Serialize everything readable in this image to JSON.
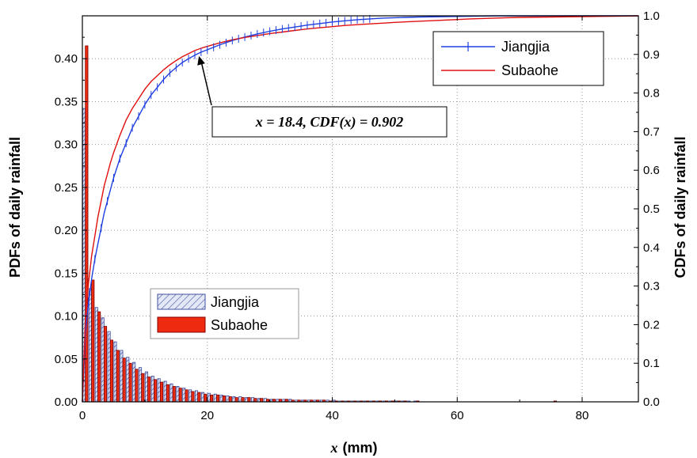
{
  "chart_data": {
    "type": "bar+line",
    "title": "",
    "xlabel_symbol": "x",
    "xlabel_unit": "(mm)",
    "ylabel_left": "PDFs of daily rainfall",
    "ylabel_right": "CDFs of daily rainfall",
    "xlim": [
      0,
      89
    ],
    "ylim_left": [
      0,
      0.45
    ],
    "ylim_right": [
      0,
      1.0
    ],
    "x_ticks": [
      "0",
      "20",
      "40",
      "60",
      "80"
    ],
    "y_left_ticks": [
      "0.00",
      "0.05",
      "0.10",
      "0.15",
      "0.20",
      "0.25",
      "0.30",
      "0.35",
      "0.40"
    ],
    "y_right_ticks": [
      "0.0",
      "0.1",
      "0.2",
      "0.3",
      "0.4",
      "0.5",
      "0.6",
      "0.7",
      "0.8",
      "0.9",
      "1.0"
    ],
    "grid": true,
    "colors": {
      "jiangjia_line": "#1f3fe0",
      "subaohe_line": "#e01010",
      "jiangjia_bar_fill": "#d7def2",
      "jiangjia_bar_hatch": "#4050a0",
      "subaohe_bar_fill": "#ee2a10",
      "grid": "#999999"
    },
    "pdf": {
      "legend_position": "center-left",
      "bin_centers": [
        0,
        1,
        2,
        3,
        4,
        5,
        6,
        7,
        8,
        9,
        10,
        11,
        12,
        13,
        14,
        15,
        16,
        17,
        18,
        19,
        20,
        21,
        22,
        23,
        24,
        25,
        26,
        27,
        28,
        29,
        30,
        31,
        32,
        33,
        34,
        35,
        36,
        37,
        38,
        39,
        40,
        41,
        42,
        43,
        44,
        45,
        46,
        47,
        48,
        49,
        50,
        51,
        52,
        53,
        54,
        55,
        56,
        57,
        58,
        59,
        60,
        61,
        62,
        63,
        64,
        65,
        66,
        67,
        68,
        69,
        70,
        71,
        72,
        73,
        74,
        75,
        76,
        77,
        78,
        79,
        80,
        81,
        82,
        83,
        84,
        85,
        86,
        87,
        88
      ],
      "series": [
        {
          "name": "Jiangjia",
          "values": [
            0.342,
            0.132,
            0.11,
            0.098,
            0.082,
            0.07,
            0.06,
            0.052,
            0.046,
            0.04,
            0.035,
            0.03,
            0.027,
            0.024,
            0.021,
            0.018,
            0.016,
            0.014,
            0.013,
            0.011,
            0.01,
            0.009,
            0.008,
            0.007,
            0.006,
            0.006,
            0.005,
            0.005,
            0.004,
            0.004,
            0.003,
            0.003,
            0.003,
            0.003,
            0.002,
            0.002,
            0.002,
            0.002,
            0.002,
            0.002,
            0.002,
            0.001,
            0.001,
            0.001,
            0.001,
            0.001,
            0.001,
            0.001,
            0.001,
            0.001,
            0.001,
            0.001,
            0.001,
            0.001,
            0.0,
            0.0,
            0.0,
            0.0,
            0.0,
            0.0,
            0.0,
            0.0,
            0.0,
            0.0,
            0.0,
            0.0,
            0.0,
            0.0,
            0.0,
            0.0,
            0.0,
            0.0,
            0.0,
            0.0,
            0.0,
            0.0,
            0.0,
            0.0,
            0.0,
            0.0,
            0.0,
            0.0,
            0.0,
            0.0,
            0.0,
            0.0,
            0.0,
            0.0,
            0.0
          ]
        },
        {
          "name": "Subaohe",
          "values": [
            0.415,
            0.142,
            0.105,
            0.088,
            0.072,
            0.06,
            0.051,
            0.045,
            0.038,
            0.033,
            0.029,
            0.026,
            0.023,
            0.02,
            0.018,
            0.016,
            0.014,
            0.012,
            0.011,
            0.009,
            0.008,
            0.008,
            0.007,
            0.006,
            0.005,
            0.005,
            0.005,
            0.004,
            0.004,
            0.003,
            0.003,
            0.003,
            0.003,
            0.002,
            0.002,
            0.002,
            0.002,
            0.002,
            0.002,
            0.001,
            0.001,
            0.001,
            0.001,
            0.001,
            0.001,
            0.001,
            0.001,
            0.001,
            0.001,
            0.001,
            0.001,
            0.001,
            0.0,
            0.001,
            0.0,
            0.0,
            0.0,
            0.0,
            0.0,
            0.0,
            0.0,
            0.0,
            0.0,
            0.0,
            0.0,
            0.0,
            0.0,
            0.0,
            0.0,
            0.0,
            0.0,
            0.0,
            0.0,
            0.0,
            0.0,
            0.001,
            0.0,
            0.0,
            0.0,
            0.0,
            0.0,
            0.0,
            0.0,
            0.0,
            0.0,
            0.0,
            0.0,
            0.0,
            0.0
          ]
        }
      ]
    },
    "cdf": {
      "legend_position": "top-right",
      "series": [
        {
          "name": "Jiangjia",
          "x": [
            0,
            0.5,
            1,
            1.5,
            2,
            2.5,
            3,
            3.5,
            4,
            4.5,
            5,
            6,
            7,
            8,
            9,
            10,
            11,
            12,
            13,
            14,
            15,
            16,
            17,
            18,
            19,
            20,
            22,
            24,
            26,
            28,
            30,
            32,
            34,
            36,
            38,
            40,
            42,
            44,
            46,
            48,
            50,
            54,
            58,
            62,
            66,
            70,
            75,
            80,
            85,
            89
          ],
          "y": [
            0.0,
            0.18,
            0.26,
            0.32,
            0.37,
            0.41,
            0.45,
            0.49,
            0.52,
            0.55,
            0.58,
            0.63,
            0.67,
            0.71,
            0.74,
            0.77,
            0.795,
            0.815,
            0.835,
            0.852,
            0.866,
            0.879,
            0.889,
            0.898,
            0.906,
            0.912,
            0.925,
            0.936,
            0.945,
            0.953,
            0.96,
            0.966,
            0.971,
            0.976,
            0.98,
            0.984,
            0.987,
            0.99,
            0.992,
            0.994,
            0.995,
            0.997,
            0.998,
            0.999,
            1.0,
            1.0,
            1.0,
            1.0,
            1.0,
            1.0
          ]
        },
        {
          "name": "Subaohe",
          "x": [
            0,
            0.5,
            1,
            1.5,
            2,
            2.5,
            3,
            3.5,
            4,
            4.5,
            5,
            6,
            7,
            8,
            9,
            10,
            11,
            12,
            13,
            14,
            15,
            16,
            17,
            18,
            19,
            20,
            22,
            24,
            26,
            28,
            30,
            32,
            34,
            36,
            38,
            40,
            42,
            44,
            46,
            48,
            50,
            54,
            58,
            62,
            66,
            70,
            75,
            80,
            85,
            89
          ],
          "y": [
            0.0,
            0.22,
            0.31,
            0.38,
            0.43,
            0.48,
            0.52,
            0.56,
            0.59,
            0.62,
            0.645,
            0.69,
            0.73,
            0.76,
            0.785,
            0.81,
            0.83,
            0.845,
            0.86,
            0.873,
            0.884,
            0.894,
            0.902,
            0.91,
            0.916,
            0.921,
            0.93,
            0.938,
            0.944,
            0.949,
            0.954,
            0.958,
            0.962,
            0.966,
            0.969,
            0.972,
            0.975,
            0.977,
            0.979,
            0.981,
            0.983,
            0.986,
            0.989,
            0.992,
            0.994,
            0.996,
            0.997,
            0.998,
            0.999,
            1.0
          ]
        }
      ]
    },
    "annotation": {
      "text": "x = 18.4, CDF(x) = 0.902",
      "x": 18.4,
      "y_cdf": 0.902
    }
  }
}
